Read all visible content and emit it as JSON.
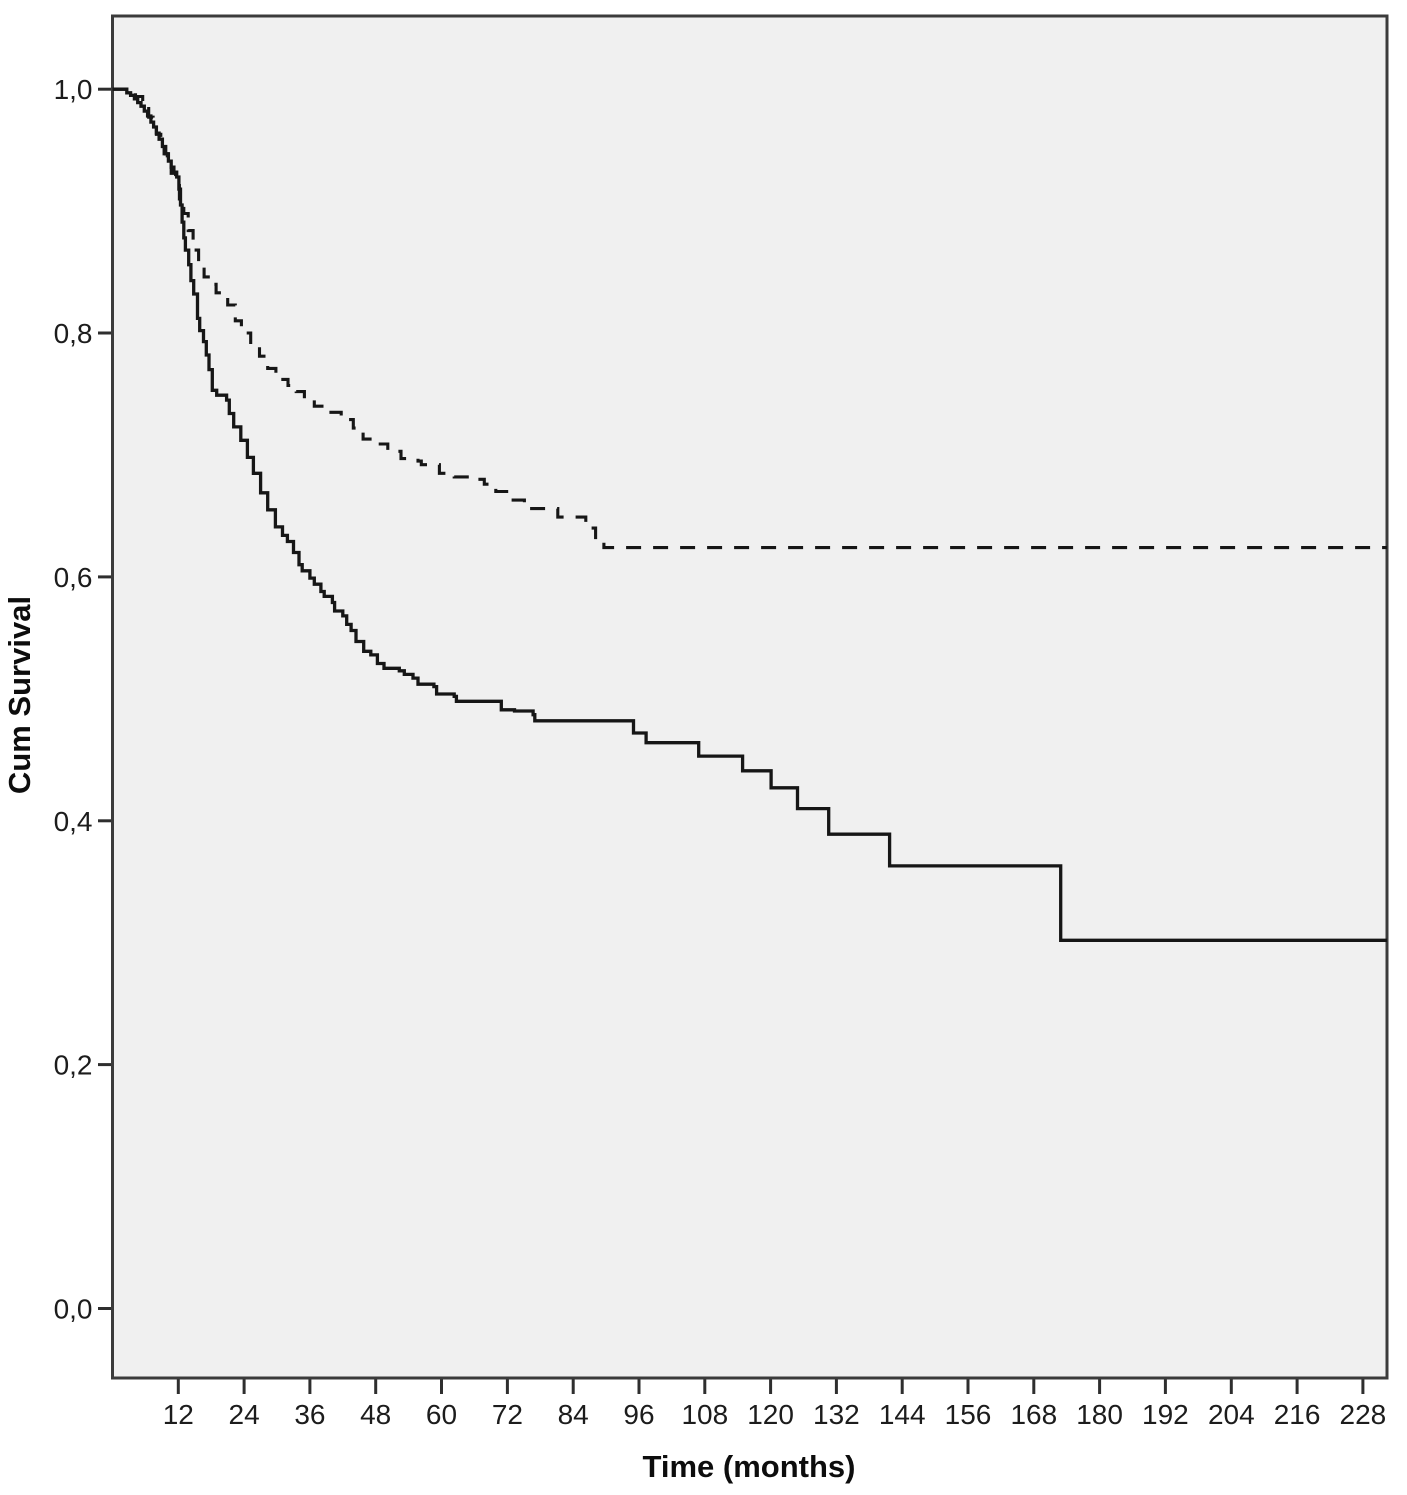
{
  "figure": {
    "background": "#ffffff",
    "plot_background": "#f0f0f0",
    "border_color": "#3b3b3b",
    "tick_color": "#2e2e2e",
    "curve_color": "#161616"
  },
  "chart_data": {
    "type": "line",
    "subtype": "kaplan-meier-step",
    "title": "",
    "xlabel": "Time (months)",
    "ylabel": "Cum Survival",
    "xlim": [
      0,
      232.4
    ],
    "ylim": [
      -0.057,
      1.06
    ],
    "grid": false,
    "legend": "none",
    "x_ticks": [
      12,
      24,
      36,
      48,
      60,
      72,
      84,
      96,
      108,
      120,
      132,
      144,
      156,
      168,
      180,
      192,
      204,
      216,
      228
    ],
    "y_ticks": [
      {
        "value": 0.0,
        "label": "0,0"
      },
      {
        "value": 0.2,
        "label": "0,2"
      },
      {
        "value": 0.4,
        "label": "0,4"
      },
      {
        "value": 0.6,
        "label": "0,6"
      },
      {
        "value": 0.8,
        "label": "0,8"
      },
      {
        "value": 1.0,
        "label": "1,0"
      }
    ],
    "series": [
      {
        "name": "group-solid",
        "line_style": "solid",
        "color": "#161616",
        "points": [
          [
            0,
            1.0
          ],
          [
            2.6,
            0.997
          ],
          [
            3.3,
            0.995
          ],
          [
            4.0,
            0.992
          ],
          [
            4.6,
            0.989
          ],
          [
            5.2,
            0.986
          ],
          [
            5.8,
            0.982
          ],
          [
            6.4,
            0.978
          ],
          [
            7.0,
            0.973
          ],
          [
            7.5,
            0.969
          ],
          [
            8.0,
            0.964
          ],
          [
            8.5,
            0.959
          ],
          [
            9.1,
            0.953
          ],
          [
            9.7,
            0.947
          ],
          [
            10.2,
            0.941
          ],
          [
            10.7,
            0.936
          ],
          [
            11.2,
            0.932
          ],
          [
            11.7,
            0.928
          ],
          [
            12.1,
            0.918
          ],
          [
            12.4,
            0.905
          ],
          [
            12.7,
            0.891
          ],
          [
            13.0,
            0.878
          ],
          [
            13.3,
            0.868
          ],
          [
            13.9,
            0.856
          ],
          [
            14.3,
            0.843
          ],
          [
            14.8,
            0.832
          ],
          [
            15.5,
            0.812
          ],
          [
            15.9,
            0.802
          ],
          [
            16.6,
            0.793
          ],
          [
            17.1,
            0.782
          ],
          [
            17.6,
            0.77
          ],
          [
            18.2,
            0.753
          ],
          [
            19.0,
            0.749
          ],
          [
            20.8,
            0.745
          ],
          [
            21.3,
            0.734
          ],
          [
            22.1,
            0.723
          ],
          [
            23.4,
            0.712
          ],
          [
            24.6,
            0.698
          ],
          [
            25.7,
            0.685
          ],
          [
            27.0,
            0.669
          ],
          [
            28.3,
            0.655
          ],
          [
            29.7,
            0.641
          ],
          [
            31.0,
            0.634
          ],
          [
            31.9,
            0.629
          ],
          [
            33.0,
            0.62
          ],
          [
            34.0,
            0.61
          ],
          [
            34.6,
            0.605
          ],
          [
            36.0,
            0.599
          ],
          [
            36.8,
            0.594
          ],
          [
            38.0,
            0.588
          ],
          [
            38.6,
            0.584
          ],
          [
            40.1,
            0.579
          ],
          [
            40.5,
            0.572
          ],
          [
            42.0,
            0.568
          ],
          [
            42.7,
            0.561
          ],
          [
            43.5,
            0.556
          ],
          [
            44.4,
            0.547
          ],
          [
            45.8,
            0.539
          ],
          [
            47.1,
            0.536
          ],
          [
            48.3,
            0.529
          ],
          [
            49.5,
            0.525
          ],
          [
            52.3,
            0.523
          ],
          [
            53.2,
            0.52
          ],
          [
            54.8,
            0.517
          ],
          [
            55.7,
            0.512
          ],
          [
            58.6,
            0.51
          ],
          [
            59.1,
            0.504
          ],
          [
            62.3,
            0.502
          ],
          [
            62.7,
            0.498
          ],
          [
            70.9,
            0.491
          ],
          [
            73.3,
            0.49
          ],
          [
            76.7,
            0.487
          ],
          [
            77.0,
            0.482
          ],
          [
            95.0,
            0.472
          ],
          [
            97.3,
            0.464
          ],
          [
            106.9,
            0.453
          ],
          [
            114.9,
            0.441
          ],
          [
            120.1,
            0.427
          ],
          [
            124.9,
            0.41
          ],
          [
            130.6,
            0.389
          ],
          [
            141.7,
            0.363
          ],
          [
            172.9,
            0.302
          ]
        ]
      },
      {
        "name": "group-dashed",
        "line_style": "dashed",
        "color": "#161616",
        "points": [
          [
            0,
            1.0
          ],
          [
            3.0,
            0.998
          ],
          [
            4.2,
            0.994
          ],
          [
            5.5,
            0.986
          ],
          [
            6.6,
            0.977
          ],
          [
            7.4,
            0.97
          ],
          [
            8.0,
            0.963
          ],
          [
            8.8,
            0.955
          ],
          [
            9.4,
            0.947
          ],
          [
            10.0,
            0.939
          ],
          [
            10.7,
            0.931
          ],
          [
            11.5,
            0.921
          ],
          [
            12.2,
            0.91
          ],
          [
            13.0,
            0.898
          ],
          [
            13.8,
            0.884
          ],
          [
            14.7,
            0.868
          ],
          [
            15.7,
            0.856
          ],
          [
            16.7,
            0.846
          ],
          [
            17.8,
            0.84
          ],
          [
            18.9,
            0.833
          ],
          [
            21.0,
            0.823
          ],
          [
            22.4,
            0.81
          ],
          [
            23.5,
            0.8
          ],
          [
            25.2,
            0.79
          ],
          [
            26.8,
            0.781
          ],
          [
            28.3,
            0.771
          ],
          [
            29.8,
            0.762
          ],
          [
            32.0,
            0.757
          ],
          [
            33.5,
            0.752
          ],
          [
            35.0,
            0.746
          ],
          [
            36.8,
            0.74
          ],
          [
            39.3,
            0.735
          ],
          [
            41.7,
            0.729
          ],
          [
            43.9,
            0.722
          ],
          [
            45.7,
            0.713
          ],
          [
            47.7,
            0.709
          ],
          [
            50.2,
            0.703
          ],
          [
            52.6,
            0.697
          ],
          [
            55.7,
            0.695
          ],
          [
            56.3,
            0.692
          ],
          [
            59.6,
            0.685
          ],
          [
            62.3,
            0.682
          ],
          [
            65.0,
            0.68
          ],
          [
            67.8,
            0.676
          ],
          [
            69.9,
            0.67
          ],
          [
            72.7,
            0.663
          ],
          [
            75.1,
            0.656
          ],
          [
            81.2,
            0.649
          ],
          [
            86.3,
            0.64
          ],
          [
            88.1,
            0.629
          ],
          [
            89.6,
            0.624
          ]
        ]
      }
    ]
  }
}
